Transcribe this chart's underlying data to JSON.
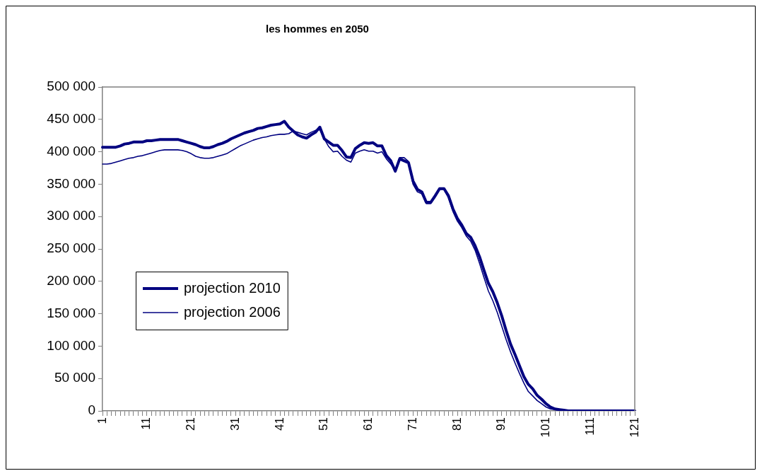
{
  "chart_data": {
    "type": "line",
    "title": "les hommes en 2050",
    "categories": [
      "1",
      null,
      null,
      null,
      null,
      null,
      null,
      null,
      null,
      null,
      "11",
      null,
      null,
      null,
      null,
      null,
      null,
      null,
      null,
      null,
      "21",
      null,
      null,
      null,
      null,
      null,
      null,
      null,
      null,
      null,
      "31",
      null,
      null,
      null,
      null,
      null,
      null,
      null,
      null,
      null,
      "41",
      null,
      null,
      null,
      null,
      null,
      null,
      null,
      null,
      null,
      "51",
      null,
      null,
      null,
      null,
      null,
      null,
      null,
      null,
      null,
      "61",
      null,
      null,
      null,
      null,
      null,
      null,
      null,
      null,
      null,
      "71",
      null,
      null,
      null,
      null,
      null,
      null,
      null,
      null,
      null,
      "81",
      null,
      null,
      null,
      null,
      null,
      null,
      null,
      null,
      null,
      "91",
      null,
      null,
      null,
      null,
      null,
      null,
      null,
      null,
      null,
      "101",
      null,
      null,
      null,
      null,
      null,
      null,
      null,
      null,
      null,
      "111",
      null,
      null,
      null,
      null,
      null,
      null,
      null,
      null,
      null,
      "121"
    ],
    "series": [
      {
        "name": "projection 2010",
        "color": "#000080",
        "values": [
          407000,
          407000,
          407000,
          407000,
          409000,
          412000,
          413000,
          415000,
          415000,
          415000,
          417000,
          417000,
          418000,
          419000,
          419000,
          419000,
          419000,
          419000,
          417000,
          415000,
          413000,
          411000,
          408000,
          406000,
          406000,
          408000,
          411000,
          413000,
          416000,
          420000,
          423000,
          426000,
          429000,
          431000,
          433000,
          436000,
          437000,
          439000,
          441000,
          442000,
          443000,
          447000,
          438000,
          432000,
          426000,
          423000,
          421000,
          426000,
          430000,
          438000,
          420000,
          415000,
          410000,
          410000,
          402000,
          392000,
          391000,
          405000,
          410000,
          414000,
          413000,
          414000,
          409000,
          409000,
          394000,
          386000,
          370000,
          389000,
          386000,
          383000,
          355000,
          342000,
          338000,
          322000,
          322000,
          332000,
          343000,
          343000,
          332000,
          312000,
          297000,
          287000,
          274000,
          268000,
          255000,
          238000,
          217000,
          197000,
          184000,
          167000,
          147000,
          124000,
          103000,
          87000,
          70000,
          53000,
          41000,
          34000,
          24000,
          18000,
          11000,
          6000,
          3000,
          2000,
          1000,
          0,
          0,
          0,
          0,
          0,
          0,
          0,
          0,
          0,
          0,
          0,
          0,
          0,
          0,
          0,
          0
        ]
      },
      {
        "name": "projection 2006",
        "color": "#000080",
        "values": [
          381000,
          381000,
          382000,
          384000,
          386000,
          388000,
          390000,
          391000,
          393000,
          394000,
          396000,
          398000,
          400000,
          402000,
          403000,
          403000,
          403000,
          403000,
          402000,
          400000,
          397000,
          393000,
          391000,
          390000,
          390000,
          391000,
          393000,
          395000,
          397000,
          401000,
          405000,
          409000,
          412000,
          415000,
          418000,
          420000,
          422000,
          423000,
          425000,
          426000,
          427000,
          427000,
          428000,
          432000,
          430000,
          428000,
          426000,
          430000,
          433000,
          434000,
          420000,
          408000,
          400000,
          401000,
          393000,
          387000,
          384000,
          398000,
          401000,
          403000,
          401000,
          401000,
          398000,
          400000,
          389000,
          381000,
          371000,
          391000,
          391000,
          385000,
          350000,
          338000,
          335000,
          320000,
          320000,
          330000,
          342000,
          342000,
          329000,
          308000,
          293000,
          283000,
          270000,
          262000,
          248000,
          228000,
          206000,
          185000,
          170000,
          152000,
          131000,
          110000,
          91000,
          74000,
          58000,
          43000,
          30000,
          23000,
          16000,
          11000,
          6000,
          3000,
          2000,
          1000,
          0,
          0,
          0,
          0,
          0,
          0,
          0,
          0,
          0,
          0,
          0,
          0,
          0,
          0,
          0,
          0,
          0
        ]
      }
    ],
    "ylim": [
      0,
      500000
    ],
    "yticks": [
      {
        "value": 0,
        "label": "0"
      },
      {
        "value": 50000,
        "label": "50 000"
      },
      {
        "value": 100000,
        "label": "100 000"
      },
      {
        "value": 150000,
        "label": "150 000"
      },
      {
        "value": 200000,
        "label": "200 000"
      },
      {
        "value": 250000,
        "label": "250 000"
      },
      {
        "value": 300000,
        "label": "300 000"
      },
      {
        "value": 350000,
        "label": "350 000"
      },
      {
        "value": 400000,
        "label": "400 000"
      },
      {
        "value": 450000,
        "label": "450 000"
      },
      {
        "value": 500000,
        "label": "500 000"
      }
    ],
    "grid": false,
    "legend": "left",
    "marker": "none",
    "line_style": "solid"
  }
}
